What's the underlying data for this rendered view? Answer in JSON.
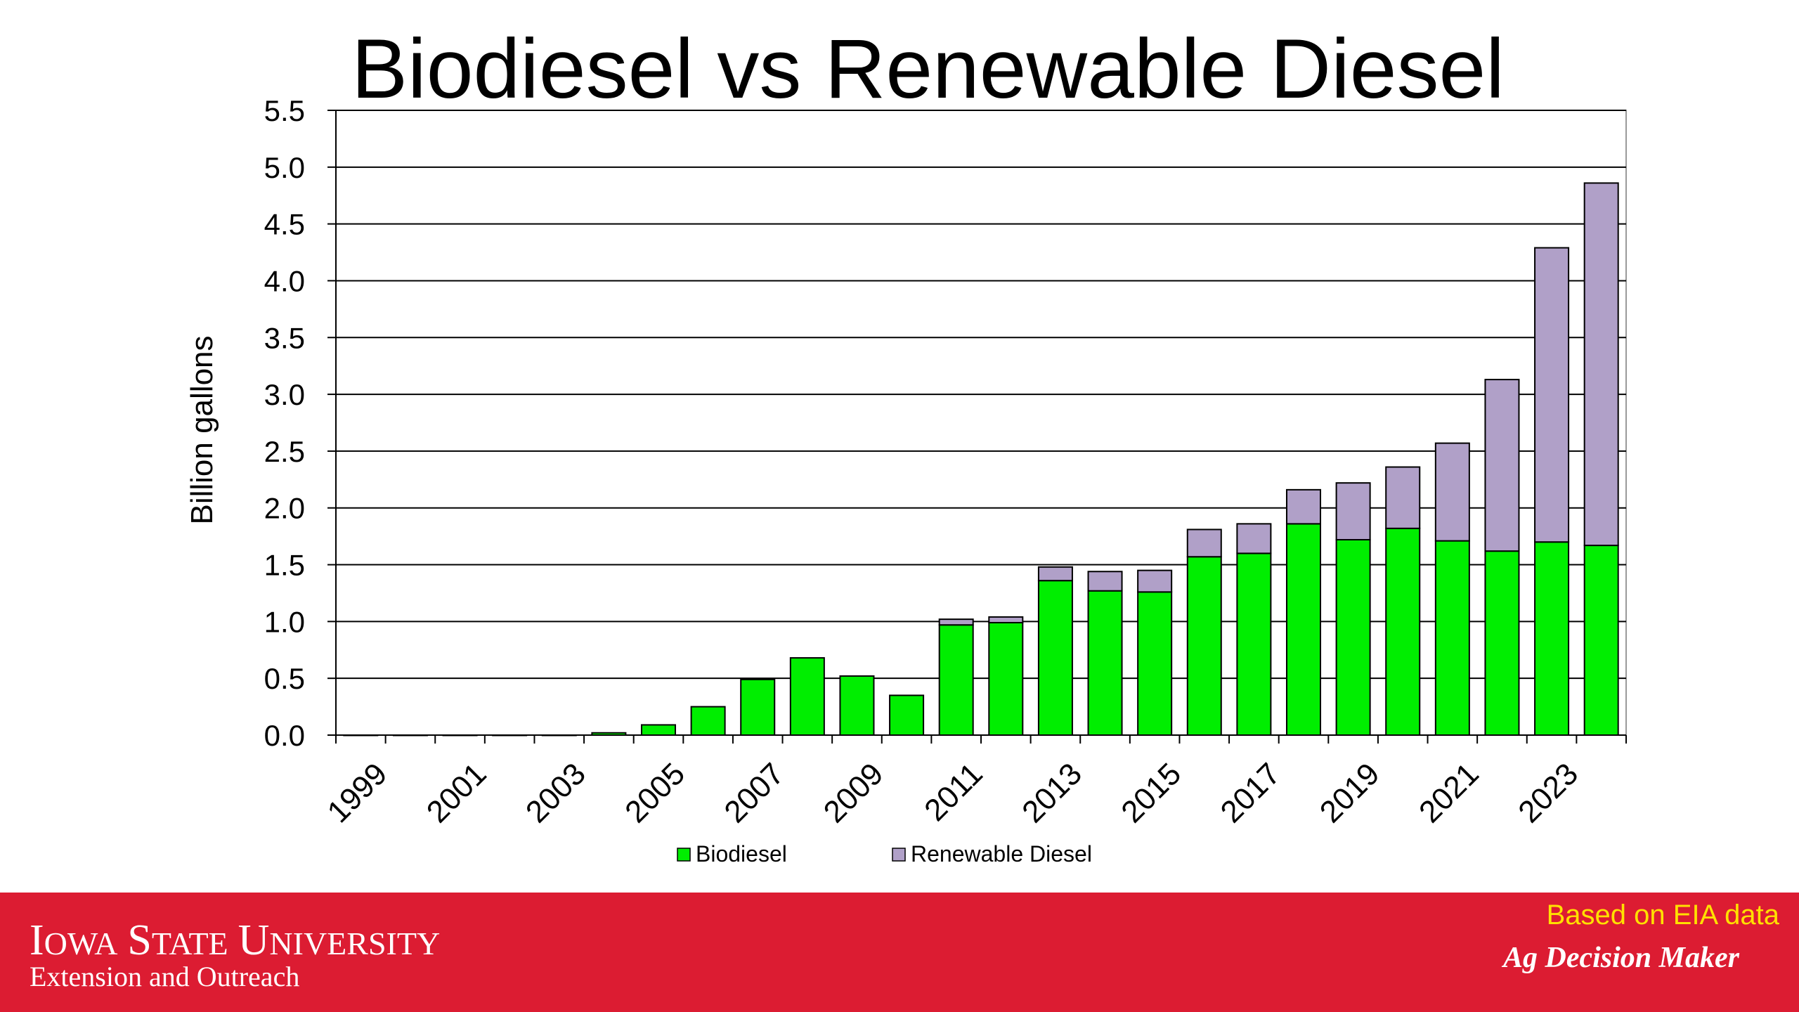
{
  "slide": {
    "title": "Biodiesel vs Renewable Diesel"
  },
  "footer": {
    "org_name": "Iowa State University",
    "org_sub": "Extension and Outreach",
    "source_note": "Based on EIA data",
    "brand": "Ag Decision Maker"
  },
  "colors": {
    "biodiesel": "#00ee00",
    "renewable_diesel": "#b0a0c8",
    "footer_bg": "#dc1c32",
    "source_note": "#ffe000",
    "gridline": "#000000"
  },
  "chart_data": {
    "type": "bar",
    "stacked": true,
    "title": "Biodiesel vs Renewable Diesel",
    "xlabel": "",
    "ylabel": "Billion gallons",
    "ylim": [
      0,
      5.5
    ],
    "y_ticks": [
      "0.0",
      "0.5",
      "1.0",
      "1.5",
      "2.0",
      "2.5",
      "3.0",
      "3.5",
      "4.0",
      "4.5",
      "5.0",
      "5.5"
    ],
    "grid": "horizontal",
    "legend_position": "bottom",
    "categories": [
      "1999",
      "2000",
      "2001",
      "2002",
      "2003",
      "2004",
      "2005",
      "2006",
      "2007",
      "2008",
      "2009",
      "2010",
      "2011",
      "2012",
      "2013",
      "2014",
      "2015",
      "2016",
      "2017",
      "2018",
      "2019",
      "2020",
      "2021",
      "2022",
      "2023",
      "2024"
    ],
    "x_tick_labels": [
      "1999",
      "2001",
      "2003",
      "2005",
      "2007",
      "2009",
      "2011",
      "2013",
      "2015",
      "2017",
      "2019",
      "2021",
      "2023"
    ],
    "series": [
      {
        "name": "Biodiesel",
        "values": [
          0.0,
          0.0,
          0.0,
          0.0,
          0.0,
          0.02,
          0.09,
          0.25,
          0.49,
          0.68,
          0.52,
          0.35,
          0.97,
          0.99,
          1.36,
          1.27,
          1.26,
          1.57,
          1.6,
          1.86,
          1.72,
          1.82,
          1.71,
          1.62,
          1.7,
          1.67
        ]
      },
      {
        "name": "Renewable Diesel",
        "values": [
          0.0,
          0.0,
          0.0,
          0.0,
          0.0,
          0.0,
          0.0,
          0.0,
          0.0,
          0.0,
          0.0,
          0.0,
          0.05,
          0.05,
          0.12,
          0.17,
          0.19,
          0.24,
          0.26,
          0.3,
          0.5,
          0.54,
          0.86,
          1.51,
          2.59,
          3.19
        ]
      }
    ]
  }
}
